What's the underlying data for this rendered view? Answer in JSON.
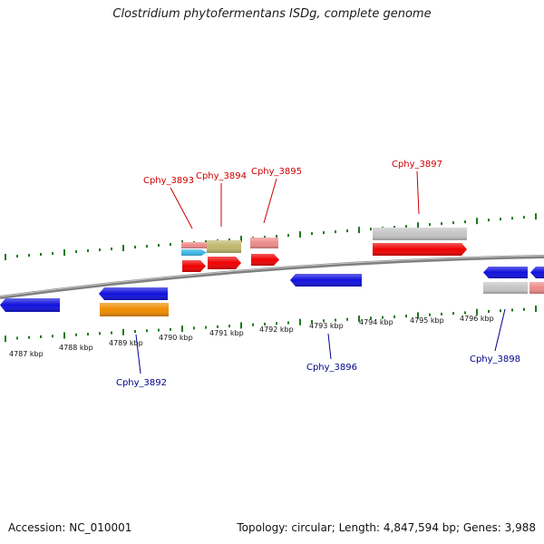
{
  "title": "Clostridium phytofermentans ISDg, complete genome",
  "footer": {
    "accession": "Accession: NC_010001",
    "summary": "Topology: circular; Length: 4,847,594 bp; Genes: 3,988"
  },
  "colors": {
    "forward_label": "#cc0000",
    "reverse_label": "#00008b",
    "tick": "#1e7a1e",
    "backbone": "#808080",
    "red": "#ee0000",
    "pink": "#ee8a8a",
    "gray": "#c4c4c4",
    "olive": "#bdb76b",
    "cyan": "#3ab8e6",
    "blue": "#1010dd",
    "orange": "#f08c00"
  },
  "scale_labels": [
    "4787 kbp",
    "4788 kbp",
    "4789 kbp",
    "4790 kbp",
    "4791 kbp",
    "4792 kbp",
    "4793 kbp",
    "4794 kbp",
    "4795 kbp",
    "4796 kbp"
  ],
  "gene_labels": {
    "forward": [
      "Cphy_3893",
      "Cphy_3894",
      "Cphy_3895",
      "Cphy_3897"
    ],
    "reverse": [
      "Cphy_3892",
      "Cphy_3896",
      "Cphy_3898"
    ]
  }
}
